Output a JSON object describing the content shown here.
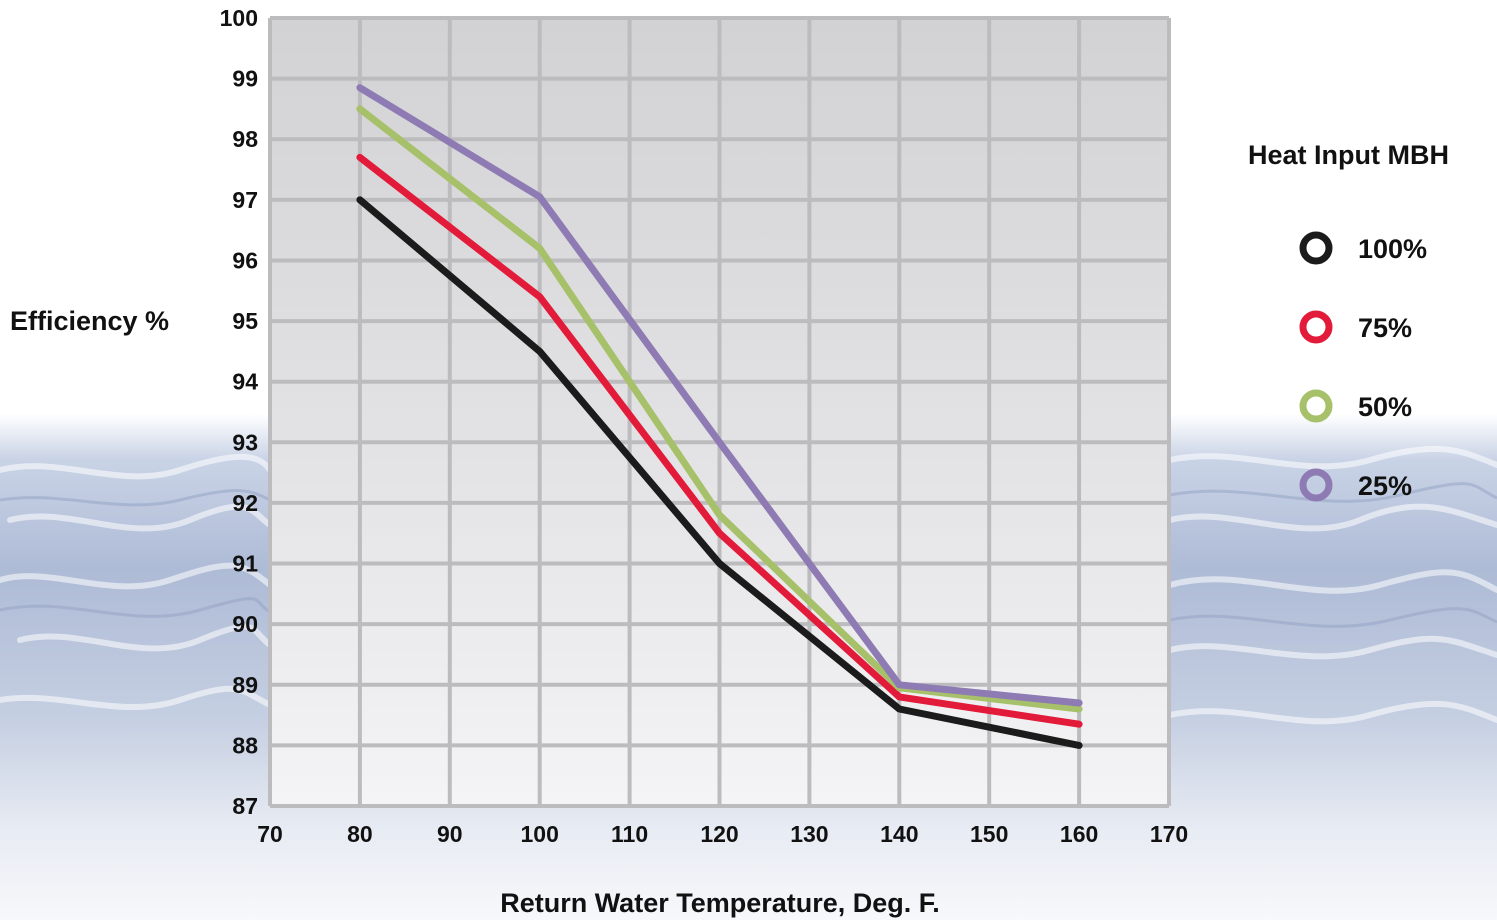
{
  "chart_data": {
    "type": "line",
    "title": "",
    "xlabel": "Return Water Temperature, Deg. F.",
    "ylabel": "Efficiency %",
    "xlim": [
      70,
      170
    ],
    "ylim": [
      87,
      100
    ],
    "xticks": [
      70,
      80,
      90,
      100,
      110,
      120,
      130,
      140,
      150,
      160,
      170
    ],
    "yticks": [
      87,
      88,
      89,
      90,
      91,
      92,
      93,
      94,
      95,
      96,
      97,
      98,
      99,
      100
    ],
    "grid": true,
    "legend": {
      "title": "Heat Input MBH",
      "placement": "right",
      "marker": "ring"
    },
    "x": [
      80,
      100,
      120,
      140,
      160
    ],
    "series": [
      {
        "name": "100%",
        "color": "#1b1b1b",
        "values": [
          97.0,
          94.5,
          91.0,
          88.6,
          88.0
        ]
      },
      {
        "name": "75%",
        "color": "#e31b3a",
        "values": [
          97.7,
          95.4,
          91.5,
          88.8,
          88.35
        ]
      },
      {
        "name": "50%",
        "color": "#a6c16a",
        "values": [
          98.5,
          96.2,
          91.8,
          88.95,
          88.6
        ]
      },
      {
        "name": "25%",
        "color": "#8e7bb3",
        "values": [
          98.85,
          97.05,
          93.0,
          89.0,
          88.7
        ]
      }
    ]
  }
}
